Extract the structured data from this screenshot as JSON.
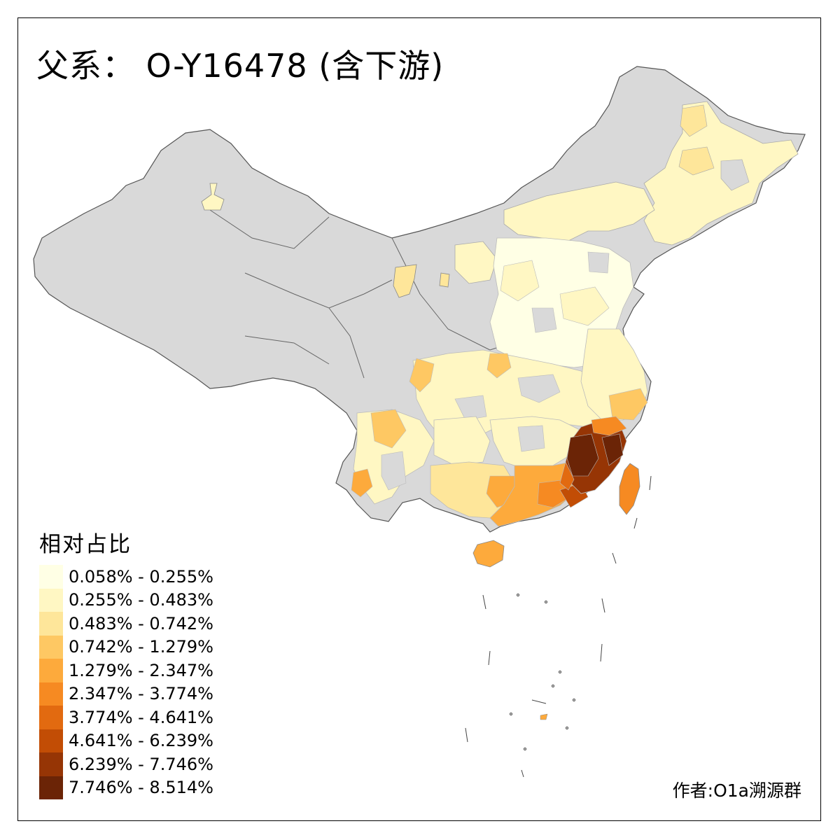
{
  "map": {
    "title": "父系： O-Y16478 (含下游)",
    "credit": "作者:O1a溯源群",
    "no_data_color": "#d9d9d9",
    "border_color": "#555555"
  },
  "legend": {
    "title": "相对占比",
    "classes": [
      {
        "label": "0.058% - 0.255%",
        "color": "#ffffe5"
      },
      {
        "label": "0.255% - 0.483%",
        "color": "#fff7c3"
      },
      {
        "label": "0.483% - 0.742%",
        "color": "#fee69a"
      },
      {
        "label": "0.742% - 1.279%",
        "color": "#fec863"
      },
      {
        "label": "1.279% - 2.347%",
        "color": "#fdaa3c"
      },
      {
        "label": "2.347% - 3.774%",
        "color": "#f68a22"
      },
      {
        "label": "3.774% - 4.641%",
        "color": "#e26a10"
      },
      {
        "label": "4.641% - 6.239%",
        "color": "#c24d05"
      },
      {
        "label": "6.239% - 7.746%",
        "color": "#963505"
      },
      {
        "label": "7.746% - 8.514%",
        "color": "#6b2406"
      }
    ]
  }
}
